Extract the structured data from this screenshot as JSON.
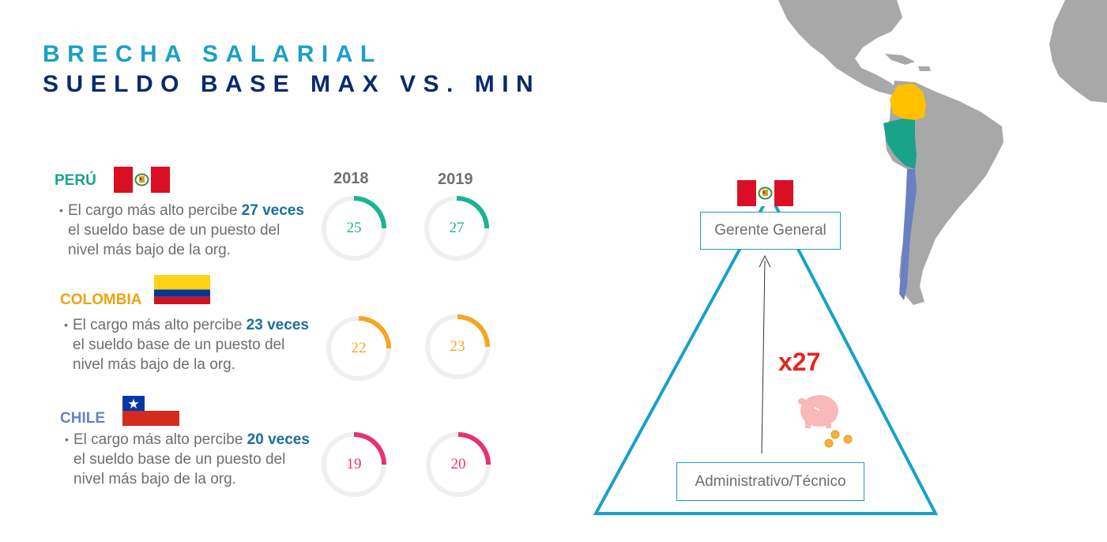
{
  "title": {
    "line1": "BRECHA SALARIAL",
    "line2": "SUELDO BASE MAX VS. MIN"
  },
  "years": [
    "2018",
    "2019"
  ],
  "countries": [
    {
      "name": "PERÚ",
      "color": "#1ba38a",
      "desc_prefix": "El cargo más alto percibe ",
      "desc_bold": "27 veces",
      "desc_suffix": " el sueldo base de un puesto del nivel más bajo de la org.",
      "values": [
        25,
        27
      ]
    },
    {
      "name": "COLOMBIA",
      "color": "#f0a20c",
      "desc_prefix": "El cargo más alto percibe ",
      "desc_bold": "23 veces",
      "desc_suffix": " el sueldo base de un puesto del nivel más bajo de la org.",
      "values": [
        22,
        23
      ]
    },
    {
      "name": "CHILE",
      "color": "#6a7fc4",
      "desc_prefix": "El cargo más alto percibe ",
      "desc_bold": "20 veces",
      "desc_suffix": " el sueldo base de un puesto del nivel más bajo de la org.",
      "values": [
        19,
        20
      ]
    }
  ],
  "ring_colors": [
    "#1ab394",
    "#f5a623",
    "#e8336d"
  ],
  "ring_track": "#efefef",
  "ring_fraction": 0.25,
  "pyramid": {
    "top_label": "Gerente General",
    "bottom_label": "Administrativo/Técnico",
    "multiplier": "x27",
    "color": "#1aa0c8"
  },
  "map_colors": {
    "land": "#a8a8a8",
    "colombia": "#ffc000",
    "peru": "#1ba38a",
    "chile": "#6a7fc4"
  }
}
